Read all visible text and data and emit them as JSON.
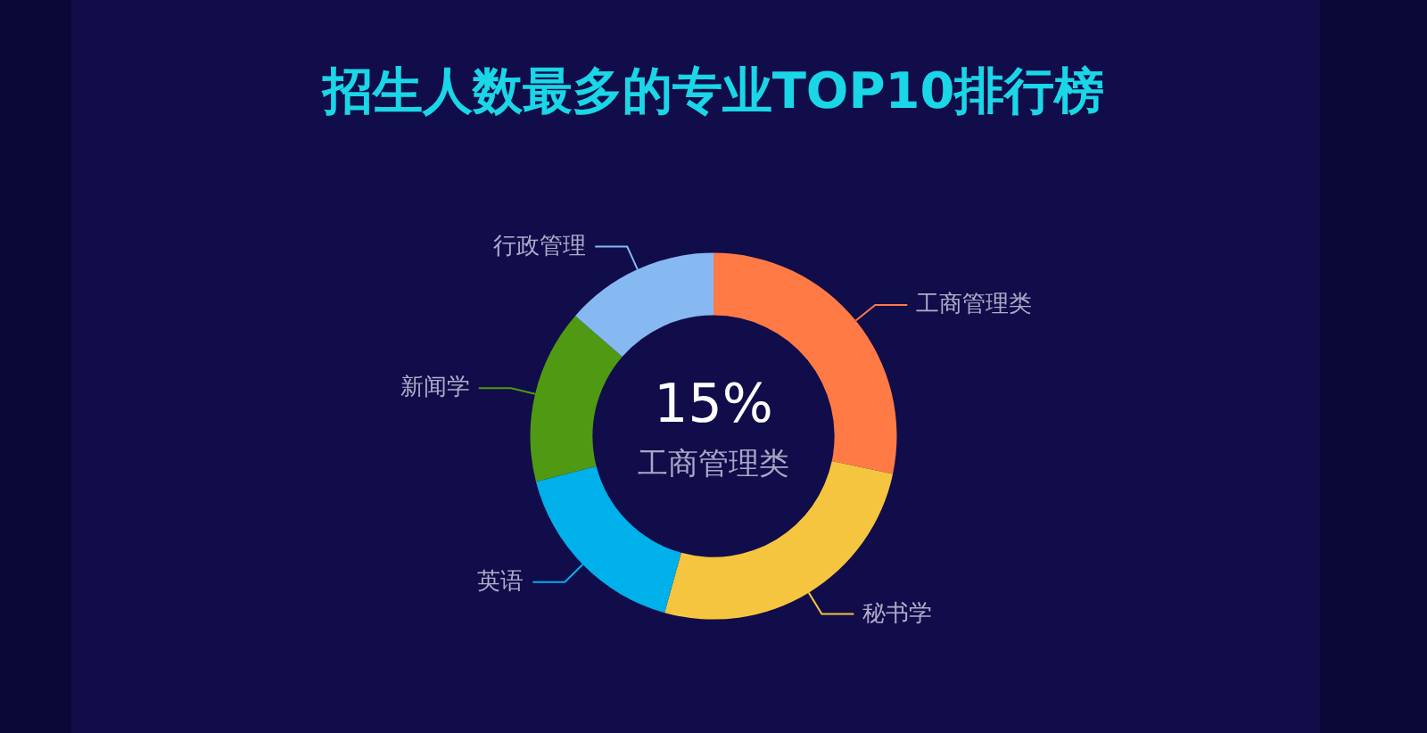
{
  "chart_data": {
    "type": "donut",
    "title": "招生人数最多的专业TOP10排行榜",
    "categories": [
      "工商管理类",
      "秘书学",
      "英语",
      "新闻学",
      "行政管理"
    ],
    "values": [
      28.3,
      26.0,
      16.7,
      15.4,
      13.6
    ],
    "colors": [
      "#ff7a45",
      "#f5c540",
      "#00b0ea",
      "#4f9a12",
      "#86b8f2"
    ],
    "annotations": [
      "15%",
      "工商管理类"
    ],
    "legend": false
  }
}
